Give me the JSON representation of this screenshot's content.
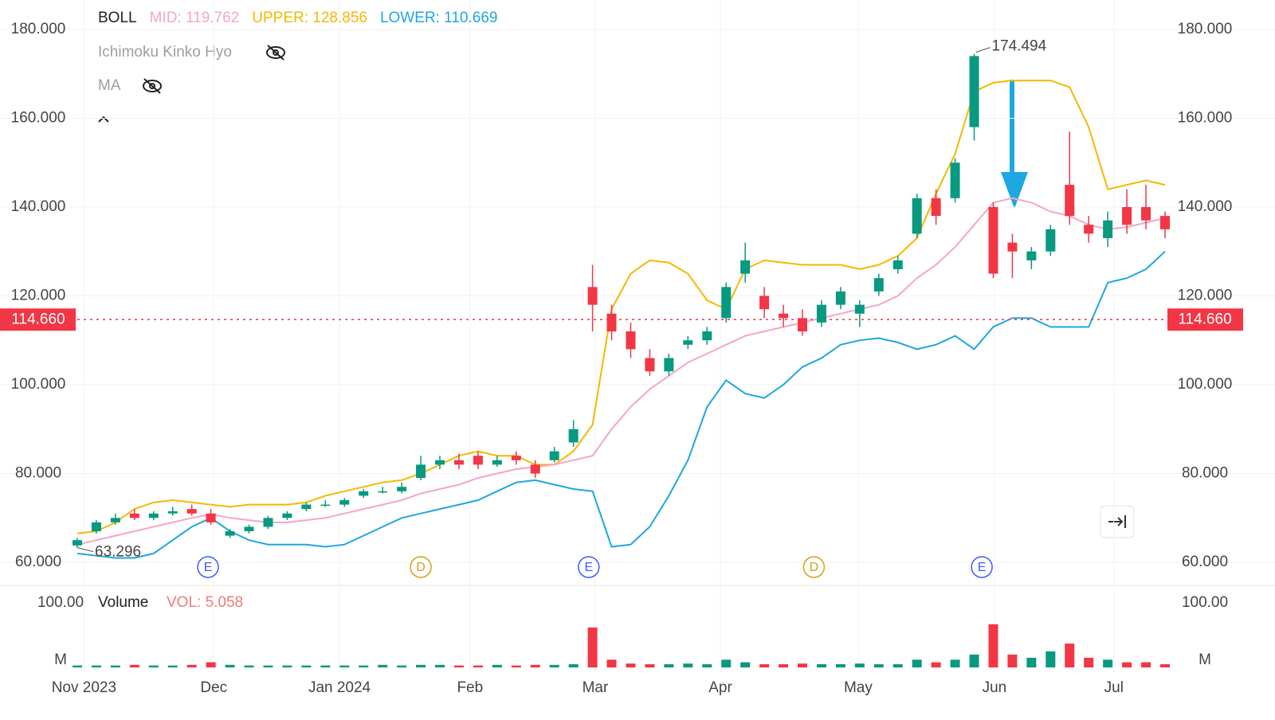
{
  "chart_data": {
    "type": "candlestick",
    "legend": [
      "BOLL",
      "MID: 119.762",
      "UPPER: 128.856",
      "LOWER: 110.669"
    ],
    "legend_colors": [
      "#222222",
      "#f4a6c6",
      "#f5b800",
      "#1ea7e0"
    ],
    "indicators": [
      "Ichimoku Kinko Hyo",
      "MA"
    ],
    "volume_title": "Volume",
    "volume_legend": "VOL: 5.058",
    "up_color": "#089981",
    "down_color": "#f23645",
    "open": [
      63.8,
      67,
      69,
      71,
      70,
      71,
      72,
      71,
      66,
      67,
      68,
      70,
      72,
      73,
      73,
      75,
      76,
      76,
      79,
      82,
      83,
      84,
      82,
      84,
      82,
      83,
      87,
      122,
      116,
      112,
      106,
      103,
      109,
      110,
      115,
      125,
      120,
      116,
      115,
      114,
      118,
      116,
      121,
      126,
      134,
      142,
      142,
      158,
      140,
      132,
      128,
      130,
      145,
      136,
      133,
      140,
      140,
      138
    ],
    "high": [
      65.5,
      69.5,
      71,
      72,
      71.5,
      72.5,
      73,
      72,
      67.5,
      68.5,
      70.5,
      71.5,
      73.5,
      74,
      74.5,
      76.5,
      77,
      78,
      84,
      84,
      84.5,
      85,
      84,
      85,
      83,
      86,
      92,
      127,
      118,
      114,
      108,
      107,
      111,
      113,
      123,
      132,
      122,
      118,
      117,
      119,
      122,
      119,
      125,
      129,
      143,
      144,
      151,
      174.494,
      141,
      134,
      131,
      136,
      157,
      138,
      139,
      144,
      145,
      139
    ],
    "low": [
      63.296,
      66.5,
      68.5,
      69.5,
      69.5,
      70.5,
      70.5,
      68.5,
      65.5,
      66.5,
      67.5,
      69.5,
      71.5,
      72.5,
      72.5,
      74.5,
      75.5,
      75.5,
      78.5,
      81,
      81,
      81,
      81.5,
      82,
      79,
      82.5,
      86,
      112,
      110,
      106,
      102,
      102,
      108,
      109,
      114,
      123,
      115,
      113,
      111,
      113,
      117,
      113,
      120,
      125,
      133,
      136,
      141,
      155,
      124,
      124,
      126,
      129,
      136,
      132,
      131,
      134,
      135,
      133
    ],
    "close": [
      65,
      69,
      70,
      70,
      71,
      71.5,
      71,
      69,
      67,
      68,
      70,
      71,
      73,
      73,
      74,
      76,
      76,
      77,
      82,
      83,
      82,
      82,
      83,
      83,
      80,
      85,
      90,
      118,
      112,
      108,
      103,
      106,
      110,
      112,
      122,
      128,
      117,
      115,
      112,
      118,
      121,
      118,
      124,
      128,
      142,
      138,
      150,
      174,
      125,
      130,
      130,
      135,
      138,
      134,
      137,
      136,
      137,
      135
    ],
    "overlays": [
      {
        "color": "#f5b800",
        "values": [
          66.5,
          67,
          69,
          72,
          73.5,
          74,
          73.5,
          73,
          72.5,
          73,
          73,
          73,
          73.5,
          75,
          76,
          77,
          78,
          78.5,
          80,
          82,
          84,
          85,
          84,
          84,
          82,
          82,
          85,
          91,
          117,
          125,
          128,
          127.5,
          125,
          119,
          117,
          126,
          128,
          127.5,
          127,
          127,
          127,
          126,
          127,
          129,
          133,
          143,
          152,
          166,
          168,
          168.5,
          168.5,
          168.5,
          167,
          158,
          144,
          145,
          146,
          145
        ]
      },
      {
        "color": "#f4a6c6",
        "values": [
          64,
          65,
          66,
          67,
          68,
          69,
          70,
          70.8,
          70,
          69.5,
          69,
          69,
          69.5,
          70,
          71,
          72,
          73,
          74,
          75.5,
          76.5,
          77.5,
          79,
          80,
          81,
          81.5,
          82,
          83,
          84,
          90,
          95,
          99,
          102,
          105,
          107,
          109,
          111,
          112,
          113,
          114,
          115,
          116,
          117,
          118,
          120,
          124,
          127,
          131,
          136,
          141,
          142,
          141,
          139,
          138,
          136,
          135,
          135.5,
          136.5,
          137.5
        ]
      },
      {
        "color": "#1ea7e0",
        "values": [
          62,
          61.5,
          61,
          61,
          62,
          65,
          68,
          70,
          67,
          65,
          64,
          64,
          64,
          63.5,
          64,
          66,
          68,
          70,
          71,
          72,
          73,
          74,
          76,
          78,
          78.5,
          77.5,
          76.5,
          76,
          63.5,
          64,
          68,
          75,
          83,
          95,
          101,
          98,
          97,
          100,
          104,
          106,
          109,
          110,
          110.5,
          109.5,
          108,
          109,
          111,
          108,
          113,
          115,
          115,
          113,
          113,
          113,
          123,
          124,
          126,
          130
        ]
      }
    ],
    "volume": [
      3,
      3,
      3,
      4,
      3,
      3,
      4,
      8,
      4,
      3,
      3,
      3,
      3,
      3,
      3,
      3,
      4,
      3,
      4,
      4,
      3,
      3,
      4,
      3,
      4,
      4,
      5,
      62,
      12,
      6,
      5,
      5,
      6,
      5,
      12,
      8,
      5,
      5,
      6,
      5,
      5,
      6,
      5,
      5,
      12,
      8,
      12,
      20,
      67,
      20,
      15,
      25,
      37,
      15,
      12,
      8,
      8,
      5.058
    ],
    "xticks": [
      {
        "value": 0.35,
        "label": "Nov 2023"
      },
      {
        "value": 7.15,
        "label": "Dec"
      },
      {
        "value": 13.74,
        "label": "Jan 2024"
      },
      {
        "value": 20.58,
        "label": "Feb"
      },
      {
        "value": 27.14,
        "label": "Mar"
      },
      {
        "value": 33.7,
        "label": "Apr"
      },
      {
        "value": 40.92,
        "label": "May"
      },
      {
        "value": 48.06,
        "label": "Jun"
      },
      {
        "value": 54.32,
        "label": "Jul"
      }
    ],
    "ylim": [
      54,
      186
    ],
    "yticks": [
      {
        "value": 60,
        "label": "60.000"
      },
      {
        "value": 80,
        "label": "80.000"
      },
      {
        "value": 100,
        "label": "100.000"
      },
      {
        "value": 120,
        "label": "120.000"
      },
      {
        "value": 140,
        "label": "140.000"
      },
      {
        "value": 160,
        "label": "160.000"
      },
      {
        "value": 180,
        "label": "180.000"
      }
    ],
    "vol_ylim": [
      0,
      110
    ],
    "vol_yticks": [
      {
        "value": 0,
        "label": "M"
      },
      {
        "value": 100,
        "label": "100.00"
      }
    ],
    "price_line": {
      "value": 114.66,
      "label": "114.660",
      "color": "#f23645"
    },
    "high_mark": {
      "index": 47,
      "value": 174.494
    },
    "low_mark": {
      "index": 0,
      "value": 63.296
    },
    "events": [
      {
        "x": 6.85,
        "label": "E",
        "color": "#3d5afe"
      },
      {
        "x": 18,
        "label": "D",
        "color": "#d4a017"
      },
      {
        "x": 26.8,
        "label": "E",
        "color": "#3d5afe"
      },
      {
        "x": 38.6,
        "label": "D",
        "color": "#d4a017"
      },
      {
        "x": 47.4,
        "label": "E",
        "color": "#3d5afe"
      }
    ],
    "grid": true
  }
}
